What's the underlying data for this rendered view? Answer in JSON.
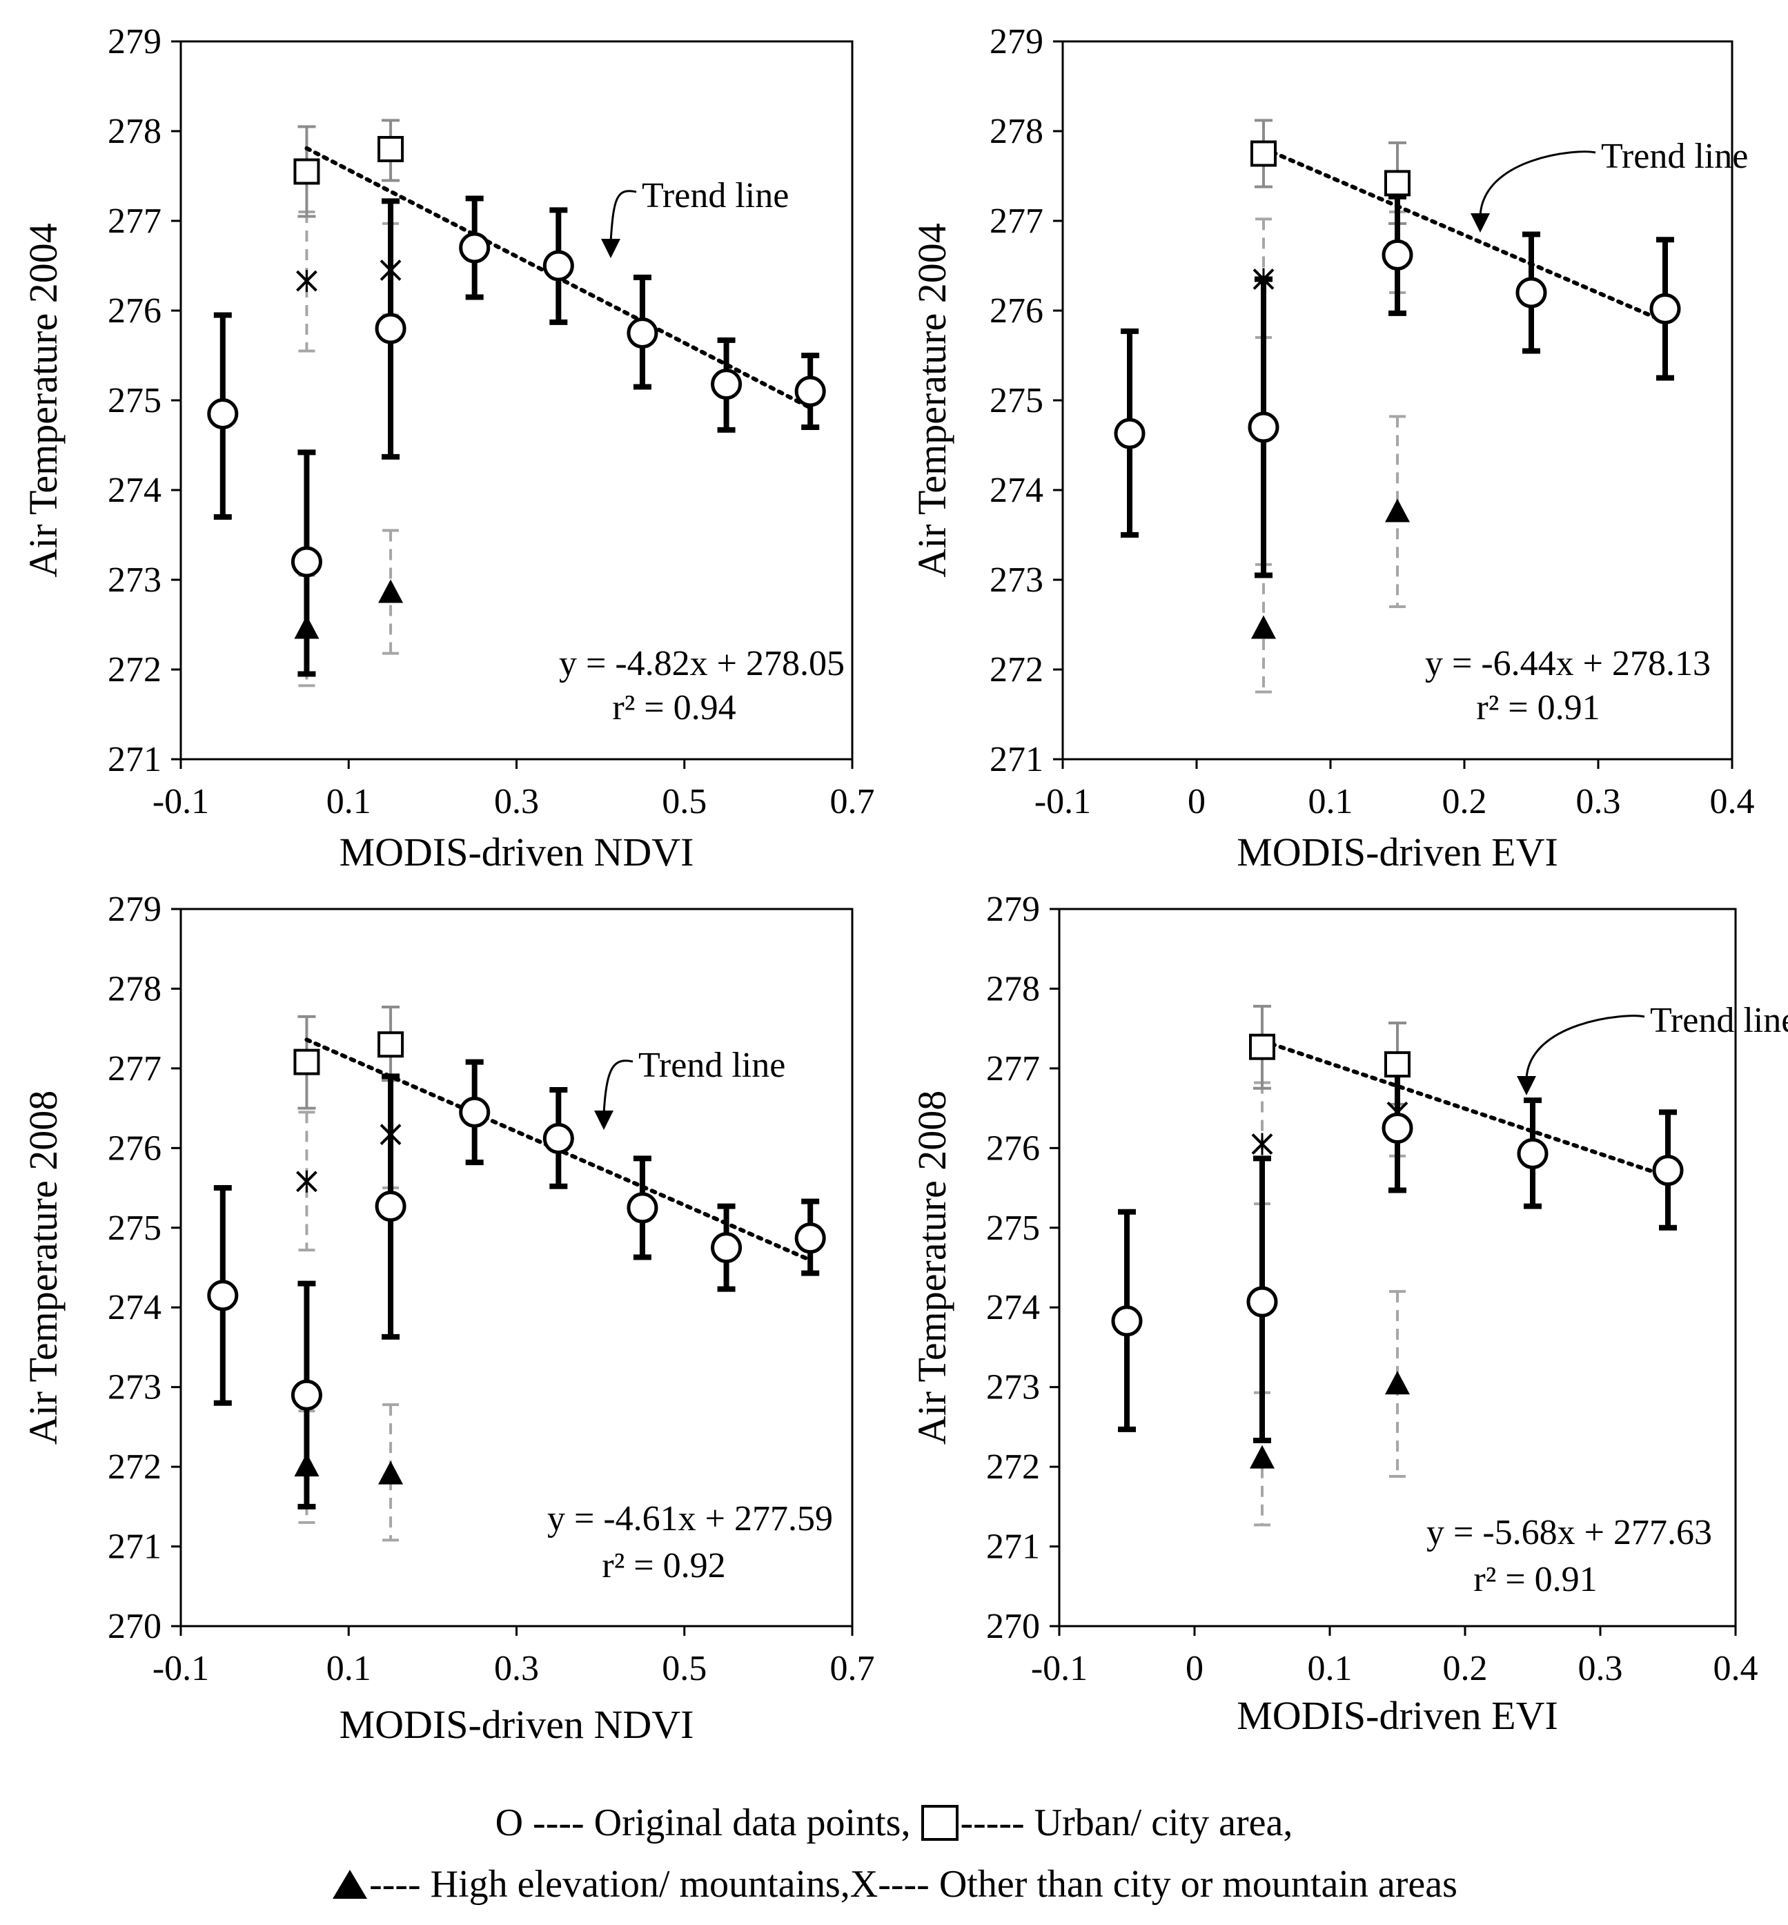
{
  "colors": {
    "original": "#000000",
    "urban": "#8c8c8c",
    "mountain": "#a6a6a6",
    "other": "#a6a6a6",
    "trend": "#000000"
  },
  "chart_data": [
    {
      "type": "scatter",
      "id": "p1",
      "xlabel": "MODIS-driven NDVI",
      "ylabel": "Air Temperature 2004",
      "xlim": [
        -0.1,
        0.7
      ],
      "ylim": [
        271,
        279
      ],
      "xticks": [
        -0.1,
        0.1,
        0.3,
        0.5,
        0.7
      ],
      "xtick_labels": [
        "-0.1",
        "0.1",
        "0.3",
        "0.5",
        "0.7"
      ],
      "yticks": [
        271,
        272,
        273,
        274,
        275,
        276,
        277,
        278,
        279
      ],
      "ytick_labels": [
        "271",
        "272",
        "273",
        "274",
        "275",
        "276",
        "277",
        "278",
        "279"
      ],
      "annotation": "Trend line",
      "equation": "y = -4.82x + 278.05",
      "r2": "r² = 0.94",
      "trend": {
        "x": [
          0.05,
          0.65
        ],
        "slope": -4.82,
        "intercept": 278.05
      },
      "series": [
        {
          "name": "Original data points",
          "marker": "circle",
          "points": [
            {
              "x": -0.05,
              "y": 274.85,
              "lo": 273.7,
              "hi": 275.95
            },
            {
              "x": 0.05,
              "y": 273.2,
              "lo": 271.95,
              "hi": 274.42
            },
            {
              "x": 0.15,
              "y": 275.8,
              "lo": 274.37,
              "hi": 277.22
            },
            {
              "x": 0.25,
              "y": 276.7,
              "lo": 276.15,
              "hi": 277.25
            },
            {
              "x": 0.35,
              "y": 276.5,
              "lo": 275.87,
              "hi": 277.12
            },
            {
              "x": 0.45,
              "y": 275.75,
              "lo": 275.15,
              "hi": 276.37
            },
            {
              "x": 0.55,
              "y": 275.18,
              "lo": 274.67,
              "hi": 275.67
            },
            {
              "x": 0.65,
              "y": 275.1,
              "lo": 274.7,
              "hi": 275.5
            }
          ]
        },
        {
          "name": "Urban/ city area",
          "marker": "square",
          "points": [
            {
              "x": 0.05,
              "y": 277.55,
              "lo": 277.05,
              "hi": 278.05
            },
            {
              "x": 0.15,
              "y": 277.8,
              "lo": 277.45,
              "hi": 278.12
            }
          ]
        },
        {
          "name": "High elevation/ mountains",
          "marker": "triangle",
          "points": [
            {
              "x": 0.05,
              "y": 272.45,
              "lo": 271.82,
              "hi": 273.05
            },
            {
              "x": 0.15,
              "y": 272.85,
              "lo": 272.18,
              "hi": 273.55
            }
          ]
        },
        {
          "name": "Other than city or mountain areas",
          "marker": "x",
          "points": [
            {
              "x": 0.05,
              "y": 276.33,
              "lo": 275.55,
              "hi": 277.1
            },
            {
              "x": 0.15,
              "y": 276.45,
              "lo": 275.95,
              "hi": 276.97
            }
          ]
        }
      ]
    },
    {
      "type": "scatter",
      "id": "p2",
      "xlabel": "MODIS-driven EVI",
      "ylabel": "Air Temperature 2004",
      "xlim": [
        -0.1,
        0.4
      ],
      "ylim": [
        271,
        279
      ],
      "xticks": [
        -0.1,
        0,
        0.1,
        0.2,
        0.3,
        0.4
      ],
      "xtick_labels": [
        "-0.1",
        "0",
        "0.1",
        "0.2",
        "0.3",
        "0.4"
      ],
      "yticks": [
        271,
        272,
        273,
        274,
        275,
        276,
        277,
        278,
        279
      ],
      "ytick_labels": [
        "271",
        "272",
        "273",
        "274",
        "275",
        "276",
        "277",
        "278",
        "279"
      ],
      "annotation": "Trend line",
      "equation": "y = -6.44x + 278.13",
      "r2": "r² = 0.91",
      "trend": {
        "x": [
          0.05,
          0.35
        ],
        "slope": -6.44,
        "intercept": 278.13
      },
      "series": [
        {
          "name": "Original data points",
          "marker": "circle",
          "points": [
            {
              "x": -0.05,
              "y": 274.63,
              "lo": 273.5,
              "hi": 275.77
            },
            {
              "x": 0.05,
              "y": 274.7,
              "lo": 273.05,
              "hi": 276.35
            },
            {
              "x": 0.15,
              "y": 276.62,
              "lo": 275.97,
              "hi": 277.27
            },
            {
              "x": 0.25,
              "y": 276.2,
              "lo": 275.55,
              "hi": 276.85
            },
            {
              "x": 0.35,
              "y": 276.02,
              "lo": 275.25,
              "hi": 276.79
            }
          ]
        },
        {
          "name": "Urban/ city area",
          "marker": "square",
          "points": [
            {
              "x": 0.05,
              "y": 277.75,
              "lo": 277.38,
              "hi": 278.12
            },
            {
              "x": 0.15,
              "y": 277.42,
              "lo": 276.97,
              "hi": 277.87
            }
          ]
        },
        {
          "name": "High elevation/ mountains",
          "marker": "triangle",
          "points": [
            {
              "x": 0.05,
              "y": 272.45,
              "lo": 271.75,
              "hi": 273.17
            },
            {
              "x": 0.15,
              "y": 273.75,
              "lo": 272.7,
              "hi": 274.82
            }
          ]
        },
        {
          "name": "Other than city or mountain areas",
          "marker": "x",
          "points": [
            {
              "x": 0.05,
              "y": 276.35,
              "lo": 275.7,
              "hi": 277.02
            },
            {
              "x": 0.15,
              "y": 276.65,
              "lo": 276.2,
              "hi": 277.1
            }
          ]
        }
      ]
    },
    {
      "type": "scatter",
      "id": "p3",
      "xlabel": "MODIS-driven NDVI",
      "ylabel": "Air Temperature 2008",
      "xlim": [
        -0.1,
        0.7
      ],
      "ylim": [
        270,
        279
      ],
      "xticks": [
        -0.1,
        0.1,
        0.3,
        0.5,
        0.7
      ],
      "xtick_labels": [
        "-0.1",
        "0.1",
        "0.3",
        "0.5",
        "0.7"
      ],
      "yticks": [
        270,
        271,
        272,
        273,
        274,
        275,
        276,
        277,
        278,
        279
      ],
      "ytick_labels": [
        "270",
        "271",
        "272",
        "273",
        "274",
        "275",
        "276",
        "277",
        "278",
        "279"
      ],
      "annotation": "Trend line",
      "equation": "y = -4.61x + 277.59",
      "r2": "r² = 0.92",
      "trend": {
        "x": [
          0.05,
          0.65
        ],
        "slope": -4.61,
        "intercept": 277.59
      },
      "series": [
        {
          "name": "Original data points",
          "marker": "circle",
          "points": [
            {
              "x": -0.05,
              "y": 274.15,
              "lo": 272.8,
              "hi": 275.5
            },
            {
              "x": 0.05,
              "y": 272.9,
              "lo": 271.5,
              "hi": 274.3
            },
            {
              "x": 0.15,
              "y": 275.27,
              "lo": 273.63,
              "hi": 276.9
            },
            {
              "x": 0.25,
              "y": 276.45,
              "lo": 275.82,
              "hi": 277.08
            },
            {
              "x": 0.35,
              "y": 276.12,
              "lo": 275.52,
              "hi": 276.73
            },
            {
              "x": 0.45,
              "y": 275.25,
              "lo": 274.63,
              "hi": 275.87
            },
            {
              "x": 0.55,
              "y": 274.75,
              "lo": 274.23,
              "hi": 275.27
            },
            {
              "x": 0.65,
              "y": 274.87,
              "lo": 274.43,
              "hi": 275.33
            }
          ]
        },
        {
          "name": "Urban/ city area",
          "marker": "square",
          "points": [
            {
              "x": 0.05,
              "y": 277.08,
              "lo": 276.5,
              "hi": 277.65
            },
            {
              "x": 0.15,
              "y": 277.3,
              "lo": 276.85,
              "hi": 277.77
            }
          ]
        },
        {
          "name": "High elevation/ mountains",
          "marker": "triangle",
          "points": [
            {
              "x": 0.05,
              "y": 272.0,
              "lo": 271.3,
              "hi": 272.7
            },
            {
              "x": 0.15,
              "y": 271.9,
              "lo": 271.08,
              "hi": 272.78
            }
          ]
        },
        {
          "name": "Other than city or mountain areas",
          "marker": "x",
          "points": [
            {
              "x": 0.05,
              "y": 275.58,
              "lo": 274.72,
              "hi": 276.45
            },
            {
              "x": 0.15,
              "y": 276.17,
              "lo": 275.5,
              "hi": 276.85
            }
          ]
        }
      ]
    },
    {
      "type": "scatter",
      "id": "p4",
      "xlabel": "MODIS-driven EVI",
      "ylabel": "Air Temperature 2008",
      "xlim": [
        -0.1,
        0.4
      ],
      "ylim": [
        270,
        279
      ],
      "xticks": [
        -0.1,
        0,
        0.1,
        0.2,
        0.3,
        0.4
      ],
      "xtick_labels": [
        "-0.1",
        "0",
        "0.1",
        "0.2",
        "0.3",
        "0.4"
      ],
      "yticks": [
        270,
        271,
        272,
        273,
        274,
        275,
        276,
        277,
        278,
        279
      ],
      "ytick_labels": [
        "270",
        "271",
        "272",
        "273",
        "274",
        "275",
        "276",
        "277",
        "278",
        "279"
      ],
      "annotation": "Trend line",
      "equation": "y = -5.68x + 277.63",
      "r2": "r² = 0.91",
      "trend": {
        "x": [
          0.05,
          0.35
        ],
        "slope": -5.68,
        "intercept": 277.63
      },
      "series": [
        {
          "name": "Original data points",
          "marker": "circle",
          "points": [
            {
              "x": -0.05,
              "y": 273.83,
              "lo": 272.47,
              "hi": 275.2
            },
            {
              "x": 0.05,
              "y": 274.07,
              "lo": 272.33,
              "hi": 275.87
            },
            {
              "x": 0.15,
              "y": 276.25,
              "lo": 275.47,
              "hi": 277.02
            },
            {
              "x": 0.25,
              "y": 275.93,
              "lo": 275.27,
              "hi": 276.6
            },
            {
              "x": 0.35,
              "y": 275.72,
              "lo": 275.0,
              "hi": 276.45
            }
          ]
        },
        {
          "name": "Urban/ city area",
          "marker": "square",
          "points": [
            {
              "x": 0.05,
              "y": 277.27,
              "lo": 276.75,
              "hi": 277.78
            },
            {
              "x": 0.15,
              "y": 277.05,
              "lo": 276.55,
              "hi": 277.57
            }
          ]
        },
        {
          "name": "High elevation/ mountains",
          "marker": "triangle",
          "points": [
            {
              "x": 0.05,
              "y": 272.1,
              "lo": 271.27,
              "hi": 272.93
            },
            {
              "x": 0.15,
              "y": 273.03,
              "lo": 271.88,
              "hi": 274.2
            }
          ]
        },
        {
          "name": "Other than city or mountain areas",
          "marker": "x",
          "points": [
            {
              "x": 0.05,
              "y": 276.05,
              "lo": 275.3,
              "hi": 276.82
            },
            {
              "x": 0.15,
              "y": 276.45,
              "lo": 275.9,
              "hi": 277.0
            }
          ]
        }
      ]
    }
  ],
  "legend": {
    "line1": {
      "o_label": "O ---- Original data points,",
      "urban_label": "----- Urban/ city area,"
    },
    "line2": {
      "triangle_label": "---- High elevation/ mountains,",
      "x_label": "X---- Other than city or mountain areas"
    }
  }
}
